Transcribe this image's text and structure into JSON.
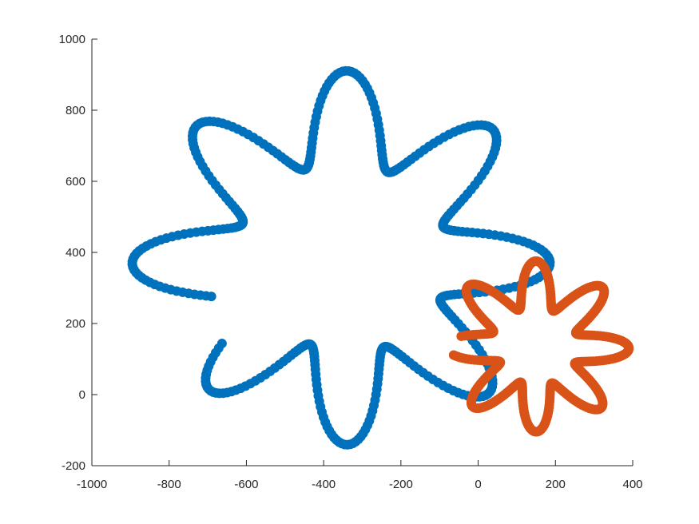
{
  "chart_data": {
    "type": "scatter",
    "xlim": [
      -1000,
      400
    ],
    "ylim": [
      -200,
      1000
    ],
    "x_ticks": [
      -1000,
      -800,
      -600,
      -400,
      -200,
      0,
      200,
      400
    ],
    "y_ticks": [
      -200,
      0,
      200,
      400,
      600,
      800,
      1000
    ],
    "x_tick_labels": [
      "-1000",
      "-800",
      "-600",
      "-400",
      "-200",
      "0",
      "200",
      "400"
    ],
    "y_tick_labels": [
      "-200",
      "0",
      "200",
      "400",
      "600",
      "800",
      "1000"
    ],
    "grid": false,
    "legend": "none",
    "series": [
      {
        "color": "#0072BD",
        "marker": "filled-circle",
        "shape": {
          "kind": "flower-curve",
          "center": [
            -340,
            370
          ],
          "base_radius": 400,
          "petal_amplitude": 130,
          "petals": 8,
          "spiral_gain": 0.14,
          "start_angle_deg": 215,
          "sweep_deg": 340,
          "points": 420
        }
      },
      {
        "color": "#D95319",
        "marker": "filled-circle",
        "shape": {
          "kind": "flower-curve",
          "center": [
            150,
            130
          ],
          "base_radius": 175,
          "petal_amplitude": 65,
          "petals": 8,
          "spiral_gain": 0.12,
          "start_angle_deg": 185,
          "sweep_deg": 345,
          "points": 420
        }
      }
    ]
  }
}
